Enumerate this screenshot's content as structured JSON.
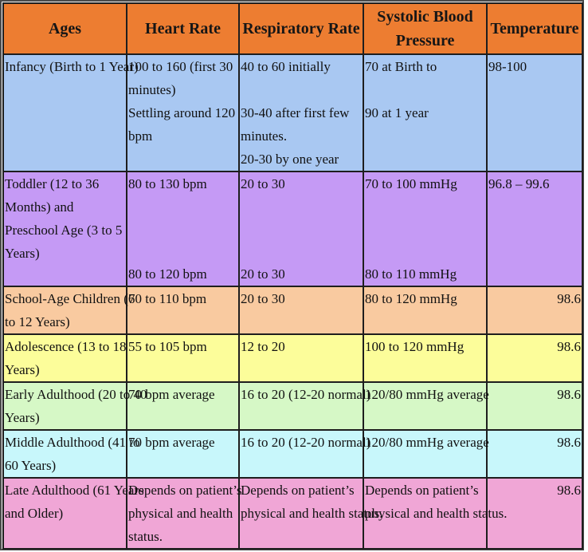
{
  "headers": {
    "ages": "Ages",
    "heart_rate": "Heart Rate",
    "respiratory_rate": "Respiratory Rate",
    "systolic_line1": "Systolic Blood",
    "systolic_line2": "Pressure",
    "temperature": "Temperature"
  },
  "rows": [
    {
      "color": "#a9c8f2",
      "age": [
        "Infancy (Birth to 1 Year)"
      ],
      "heart": [
        "100 to 160 (first 30",
        "minutes)",
        "Settling around 120",
        "bpm"
      ],
      "resp": [
        "40 to 60 initially",
        "",
        "30-40 after first few",
        "minutes.",
        "20-30 by one year"
      ],
      "bp": [
        "70 at Birth to",
        "",
        "90 at 1 year"
      ],
      "temp": "98-100"
    },
    {
      "color": "#c59af5",
      "age": [
        "Toddler (12 to 36",
        "Months) and",
        "Preschool Age (3 to 5",
        "Years)"
      ],
      "heart": [
        "80 to 130 bpm"
      ],
      "heart_late": "80 to 120 bpm",
      "resp": [
        "20 to 30"
      ],
      "resp_late": "20 to 30",
      "bp": [
        "70 to 100 mmHg"
      ],
      "bp_late": "80 to 110 mmHg",
      "temp": "96.8 – 99.6"
    },
    {
      "color": "#f9caa0",
      "age": [
        "School-Age Children (6",
        "to 12 Years)"
      ],
      "heart": [
        "70 to 110 bpm"
      ],
      "resp": [
        "20 to 30"
      ],
      "bp": [
        "80 to 120 mmHg"
      ],
      "temp": "98.6"
    },
    {
      "color": "#fcfd9a",
      "age": [
        "Adolescence (13 to 18",
        "Years)"
      ],
      "heart": [
        "55 to 105 bpm"
      ],
      "resp": [
        "12 to 20"
      ],
      "bp": [
        "100 to 120 mmHg"
      ],
      "temp": "98.6"
    },
    {
      "color": "#d6f8c6",
      "age": [
        "Early Adulthood (20 to 40",
        "Years)"
      ],
      "heart": [
        "70 bpm average"
      ],
      "resp": [
        "16 to 20 (12-20 normal)"
      ],
      "bp": [
        "120/80 mmHg average"
      ],
      "temp": "98.6"
    },
    {
      "color": "#c8f7fb",
      "age": [
        "Middle Adulthood (41 to",
        "60 Years)"
      ],
      "heart": [
        "70 bpm average"
      ],
      "resp": [
        "16 to 20 (12-20 normal)"
      ],
      "bp": [
        "120/80 mmHg average"
      ],
      "temp": "98.6"
    },
    {
      "color": "#f0a6d6",
      "age": [
        "Late Adulthood (61 Years",
        "and Older)"
      ],
      "heart": [
        "Depends on patient’s",
        "physical and health",
        "status."
      ],
      "resp": [
        "Depends on patient’s",
        "physical and health status."
      ],
      "bp": [
        "Depends on patient’s",
        "physical and health status."
      ],
      "temp": "98.6"
    }
  ]
}
